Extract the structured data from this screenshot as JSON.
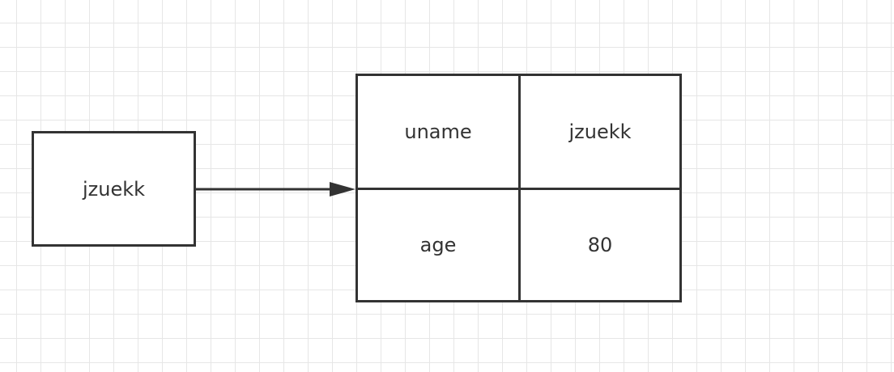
{
  "variable": {
    "label": "jzuekk"
  },
  "object": {
    "rows": [
      {
        "key": "uname",
        "value": "jzuekk"
      },
      {
        "key": "age",
        "value": "80"
      }
    ]
  },
  "colors": {
    "stroke": "#333333",
    "grid": "#e6e6e6",
    "background": "#ffffff"
  }
}
